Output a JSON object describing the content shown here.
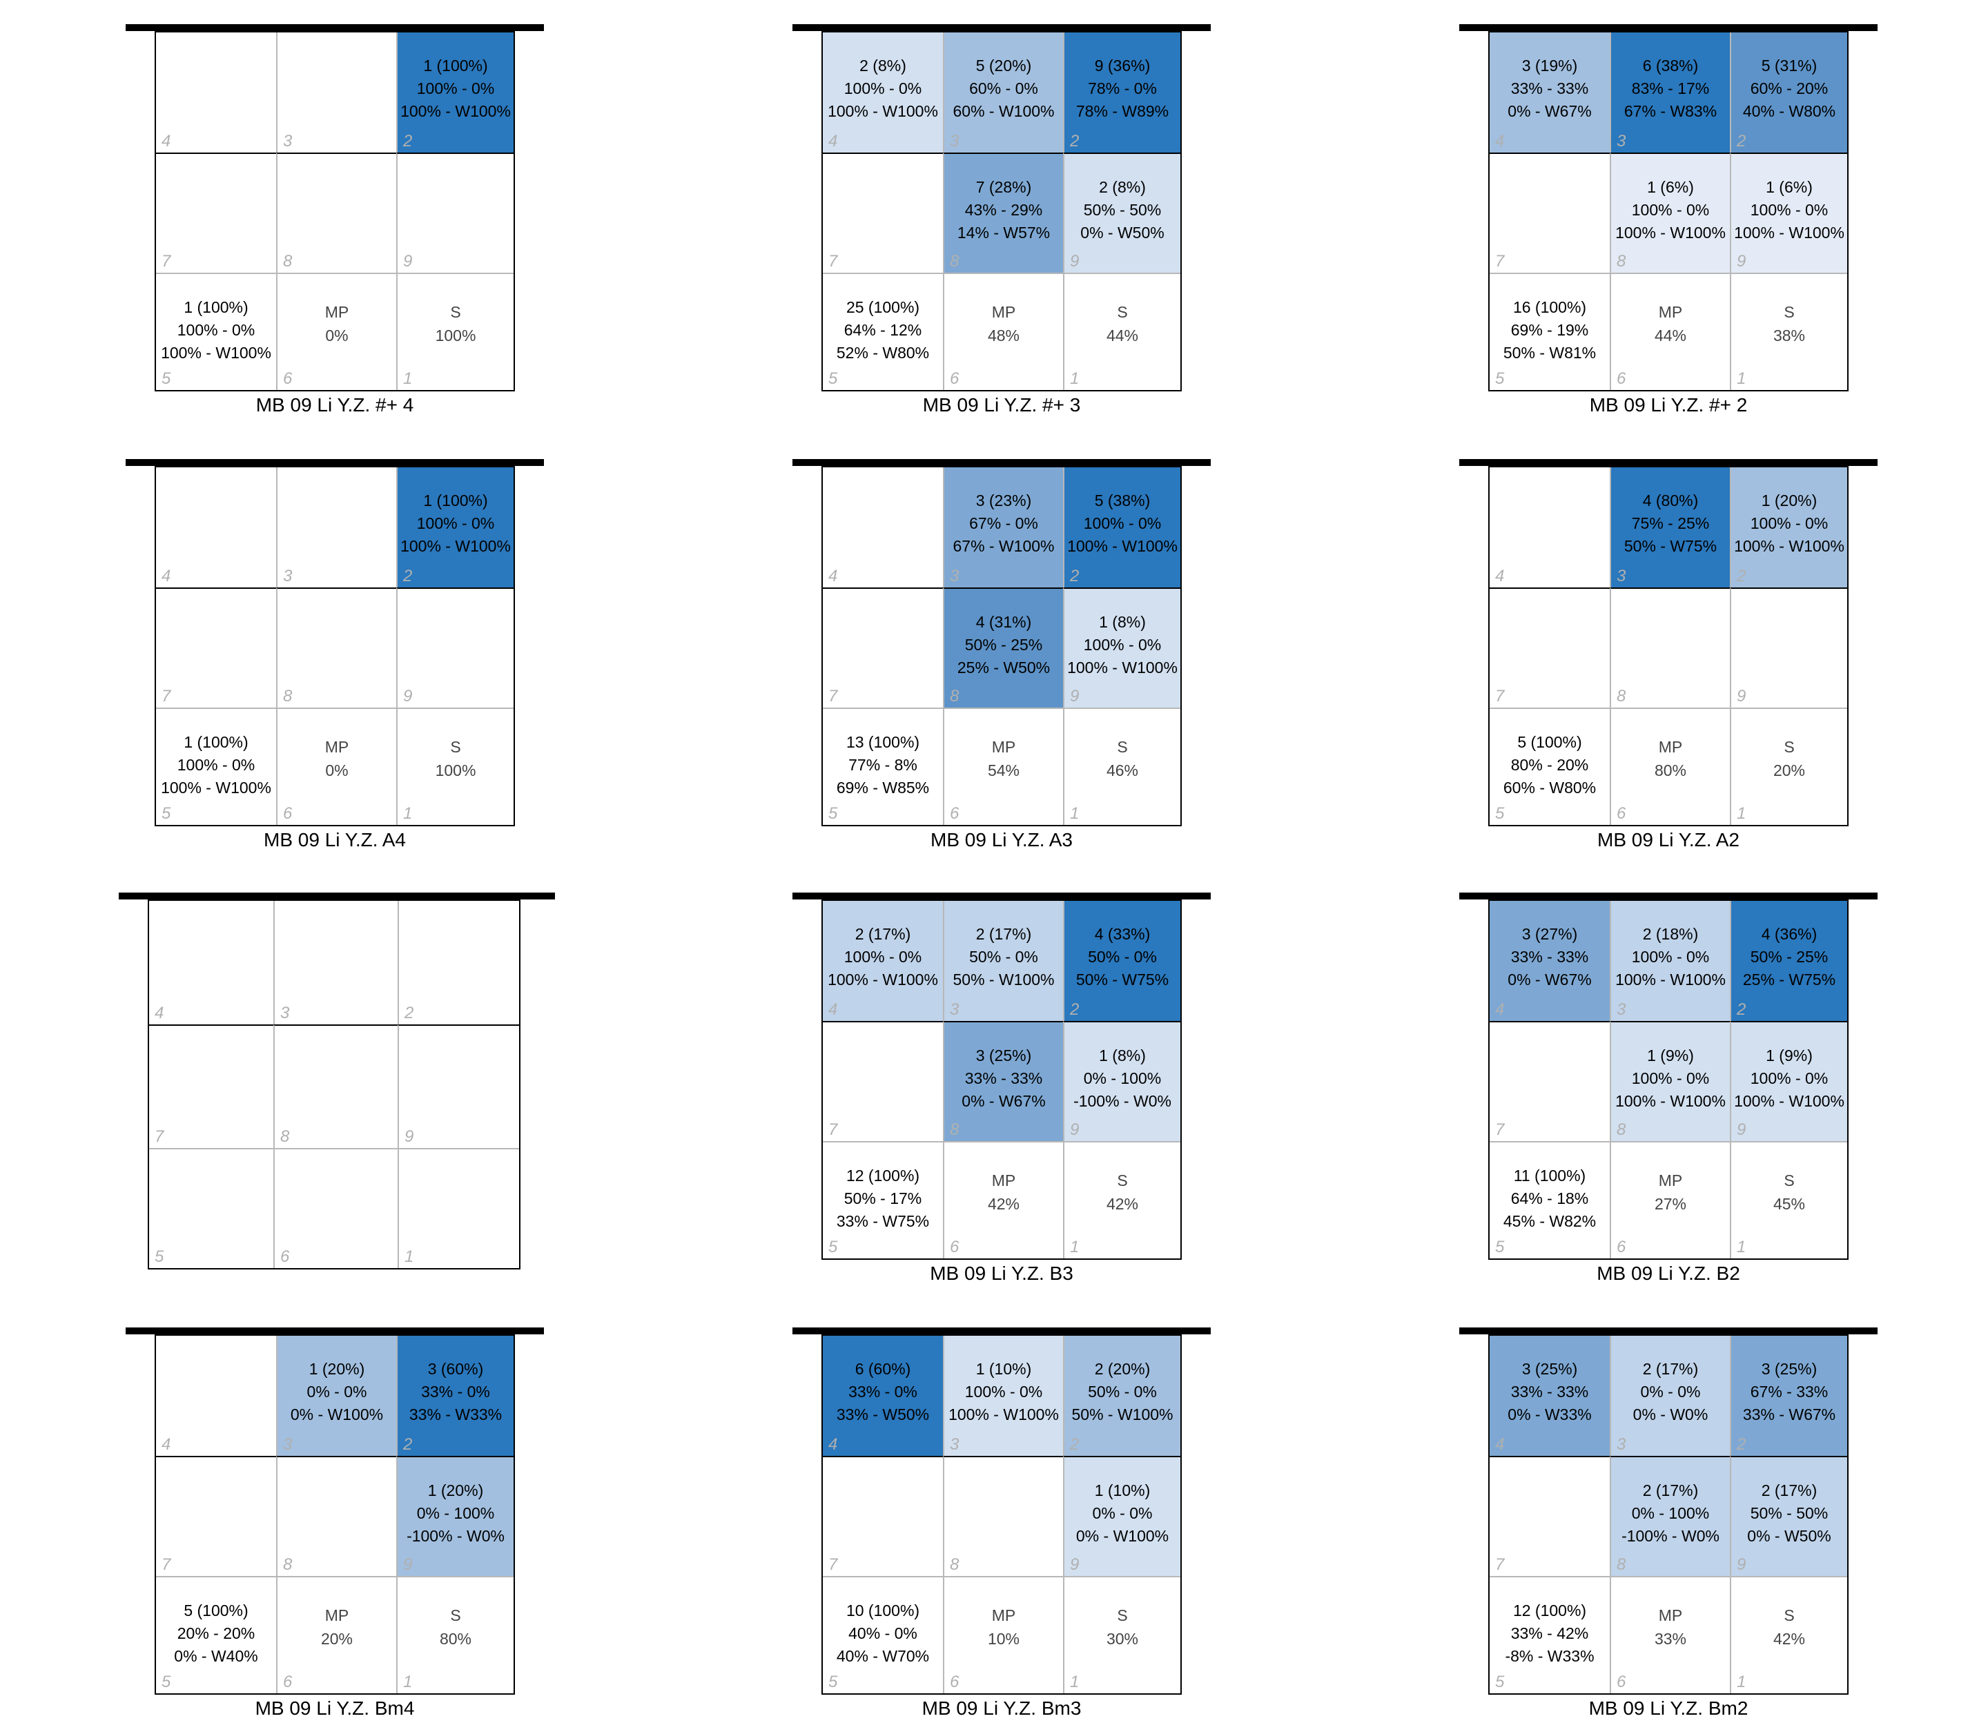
{
  "chart_data": [
    {
      "type": "heatmap",
      "caption": "MB 09 Li Y.Z. #+ 4",
      "zones": {
        "4": null,
        "3": null,
        "2": {
          "lines": [
            "1 (100%)",
            "100% - 0%",
            "100% - W100%"
          ],
          "share": 100
        },
        "7": null,
        "8": null,
        "9": null
      },
      "total": [
        "1 (100%)",
        "100% - 0%",
        "100% - W100%"
      ],
      "mp": "0%",
      "s": "100%"
    },
    {
      "type": "heatmap",
      "caption": "MB 09 Li Y.Z. #+ 3",
      "zones": {
        "4": {
          "lines": [
            "2 (8%)",
            "100% - 0%",
            "100% - W100%"
          ],
          "share": 8
        },
        "3": {
          "lines": [
            "5 (20%)",
            "60% - 0%",
            "60% - W100%"
          ],
          "share": 20
        },
        "2": {
          "lines": [
            "9 (36%)",
            "78% - 0%",
            "78% - W89%"
          ],
          "share": 36
        },
        "7": null,
        "8": {
          "lines": [
            "7 (28%)",
            "43% - 29%",
            "14% - W57%"
          ],
          "share": 28
        },
        "9": {
          "lines": [
            "2 (8%)",
            "50% - 50%",
            "0% - W50%"
          ],
          "share": 8
        }
      },
      "total": [
        "25 (100%)",
        "64% - 12%",
        "52% - W80%"
      ],
      "mp": "48%",
      "s": "44%"
    },
    {
      "type": "heatmap",
      "caption": "MB 09 Li Y.Z. #+ 2",
      "zones": {
        "4": {
          "lines": [
            "3 (19%)",
            "33% - 33%",
            "0% - W67%"
          ],
          "share": 19
        },
        "3": {
          "lines": [
            "6 (38%)",
            "83% - 17%",
            "67% - W83%"
          ],
          "share": 38
        },
        "2": {
          "lines": [
            "5 (31%)",
            "60% - 20%",
            "40% - W80%"
          ],
          "share": 31
        },
        "7": null,
        "8": {
          "lines": [
            "1 (6%)",
            "100% - 0%",
            "100% - W100%"
          ],
          "share": 6
        },
        "9": {
          "lines": [
            "1 (6%)",
            "100% - 0%",
            "100% - W100%"
          ],
          "share": 6
        }
      },
      "total": [
        "16 (100%)",
        "69% - 19%",
        "50% - W81%"
      ],
      "mp": "44%",
      "s": "38%"
    },
    {
      "type": "heatmap",
      "caption": "MB 09 Li Y.Z. A4",
      "zones": {
        "4": null,
        "3": null,
        "2": {
          "lines": [
            "1 (100%)",
            "100% - 0%",
            "100% - W100%"
          ],
          "share": 100
        },
        "7": null,
        "8": null,
        "9": null
      },
      "total": [
        "1 (100%)",
        "100% - 0%",
        "100% - W100%"
      ],
      "mp": "0%",
      "s": "100%"
    },
    {
      "type": "heatmap",
      "caption": "MB 09 Li Y.Z. A3",
      "zones": {
        "4": null,
        "3": {
          "lines": [
            "3 (23%)",
            "67% - 0%",
            "67% - W100%"
          ],
          "share": 23
        },
        "2": {
          "lines": [
            "5 (38%)",
            "100% - 0%",
            "100% - W100%"
          ],
          "share": 38
        },
        "7": null,
        "8": {
          "lines": [
            "4 (31%)",
            "50% - 25%",
            "25% - W50%"
          ],
          "share": 31
        },
        "9": {
          "lines": [
            "1 (8%)",
            "100% - 0%",
            "100% - W100%"
          ],
          "share": 8
        }
      },
      "total": [
        "13 (100%)",
        "77% - 8%",
        "69% - W85%"
      ],
      "mp": "54%",
      "s": "46%"
    },
    {
      "type": "heatmap",
      "caption": "MB 09 Li Y.Z. A2",
      "zones": {
        "4": null,
        "3": {
          "lines": [
            "4 (80%)",
            "75% - 25%",
            "50% - W75%"
          ],
          "share": 80
        },
        "2": {
          "lines": [
            "1 (20%)",
            "100% - 0%",
            "100% - W100%"
          ],
          "share": 20
        },
        "7": null,
        "8": null,
        "9": null
      },
      "total": [
        "5 (100%)",
        "80% - 20%",
        "60% - W80%"
      ],
      "mp": "80%",
      "s": "20%"
    },
    {
      "type": "heatmap",
      "caption": "",
      "empty": true,
      "zones": {
        "4": null,
        "3": null,
        "2": null,
        "7": null,
        "8": null,
        "9": null
      }
    },
    {
      "type": "heatmap",
      "caption": "MB 09 Li Y.Z. B3",
      "zones": {
        "4": {
          "lines": [
            "2 (17%)",
            "100% - 0%",
            "100% - W100%"
          ],
          "share": 17
        },
        "3": {
          "lines": [
            "2 (17%)",
            "50% - 0%",
            "50% - W100%"
          ],
          "share": 17
        },
        "2": {
          "lines": [
            "4 (33%)",
            "50% - 0%",
            "50% - W75%"
          ],
          "share": 33
        },
        "7": null,
        "8": {
          "lines": [
            "3 (25%)",
            "33% - 33%",
            "0% - W67%"
          ],
          "share": 25
        },
        "9": {
          "lines": [
            "1 (8%)",
            "0% - 100%",
            "-100% - W0%"
          ],
          "share": 8
        }
      },
      "total": [
        "12 (100%)",
        "50% - 17%",
        "33% - W75%"
      ],
      "mp": "42%",
      "s": "42%"
    },
    {
      "type": "heatmap",
      "caption": "MB 09 Li Y.Z. B2",
      "zones": {
        "4": {
          "lines": [
            "3 (27%)",
            "33% - 33%",
            "0% - W67%"
          ],
          "share": 27
        },
        "3": {
          "lines": [
            "2 (18%)",
            "100% - 0%",
            "100% - W100%"
          ],
          "share": 18
        },
        "2": {
          "lines": [
            "4 (36%)",
            "50% - 25%",
            "25% - W75%"
          ],
          "share": 36
        },
        "7": null,
        "8": {
          "lines": [
            "1 (9%)",
            "100% - 0%",
            "100% - W100%"
          ],
          "share": 9
        },
        "9": {
          "lines": [
            "1 (9%)",
            "100% - 0%",
            "100% - W100%"
          ],
          "share": 9
        }
      },
      "total": [
        "11 (100%)",
        "64% - 18%",
        "45% - W82%"
      ],
      "mp": "27%",
      "s": "45%"
    },
    {
      "type": "heatmap",
      "caption": "MB 09 Li Y.Z. Bm4",
      "zones": {
        "4": null,
        "3": {
          "lines": [
            "1 (20%)",
            "0% - 0%",
            "0% - W100%"
          ],
          "share": 20
        },
        "2": {
          "lines": [
            "3 (60%)",
            "33% - 0%",
            "33% - W33%"
          ],
          "share": 60
        },
        "7": null,
        "8": null,
        "9": {
          "lines": [
            "1 (20%)",
            "0% - 100%",
            "-100% - W0%"
          ],
          "share": 20
        }
      },
      "total": [
        "5 (100%)",
        "20% - 20%",
        "0% - W40%"
      ],
      "mp": "20%",
      "s": "80%"
    },
    {
      "type": "heatmap",
      "caption": "MB 09 Li Y.Z. Bm3",
      "zones": {
        "4": {
          "lines": [
            "6 (60%)",
            "33% - 0%",
            "33% - W50%"
          ],
          "share": 60
        },
        "3": {
          "lines": [
            "1 (10%)",
            "100% - 0%",
            "100% - W100%"
          ],
          "share": 10
        },
        "2": {
          "lines": [
            "2 (20%)",
            "50% - 0%",
            "50% - W100%"
          ],
          "share": 20
        },
        "7": null,
        "8": null,
        "9": {
          "lines": [
            "1 (10%)",
            "0% - 0%",
            "0% - W100%"
          ],
          "share": 10
        }
      },
      "total": [
        "10 (100%)",
        "40% - 0%",
        "40% - W70%"
      ],
      "mp": "10%",
      "s": "30%"
    },
    {
      "type": "heatmap",
      "caption": "MB 09 Li Y.Z. Bm2",
      "zones": {
        "4": {
          "lines": [
            "3 (25%)",
            "33% - 33%",
            "0% - W33%"
          ],
          "share": 25
        },
        "3": {
          "lines": [
            "2 (17%)",
            "0% - 0%",
            "0% - W0%"
          ],
          "share": 17
        },
        "2": {
          "lines": [
            "3 (25%)",
            "67% - 33%",
            "33% - W67%"
          ],
          "share": 25
        },
        "7": null,
        "8": {
          "lines": [
            "2 (17%)",
            "0% - 100%",
            "-100% - W0%"
          ],
          "share": 17
        },
        "9": {
          "lines": [
            "2 (17%)",
            "50% - 50%",
            "0% - W50%"
          ],
          "share": 17
        }
      },
      "total": [
        "12 (100%)",
        "33% - 42%",
        "-8% - W33%"
      ],
      "mp": "33%",
      "s": "42%"
    }
  ],
  "labels": {
    "mp": "MP",
    "s": "S"
  },
  "colors": {
    "scale": [
      "#e4ebf6",
      "#d2e0f0",
      "#bfd3ea",
      "#a2bfdf",
      "#7ea8d3",
      "#5d93c8",
      "#2a78bd"
    ],
    "grid_light": "#b8b8b8",
    "zone_number": "#b0b0b0"
  }
}
